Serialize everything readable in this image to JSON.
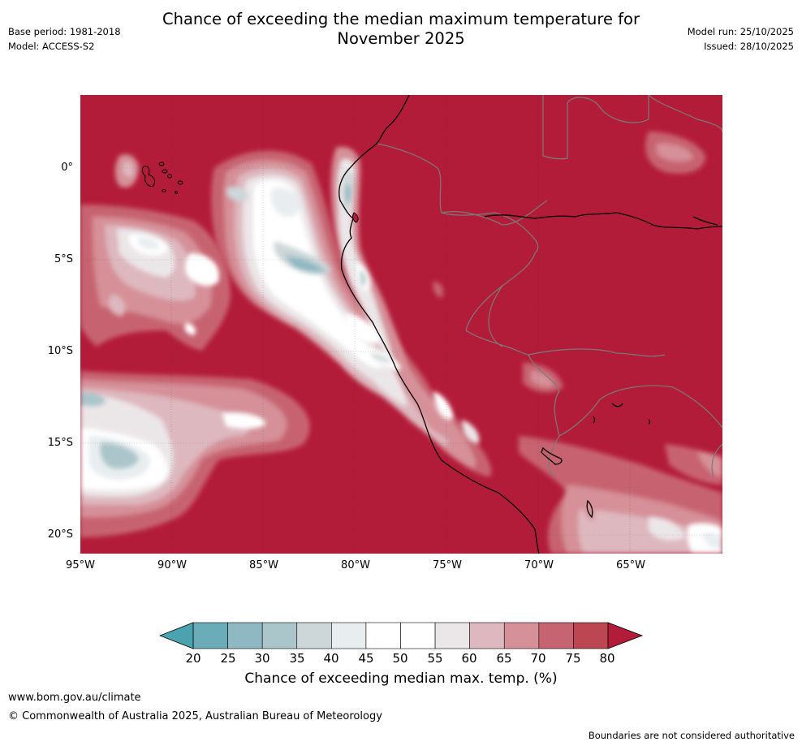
{
  "header": {
    "title_line1": "Chance of exceeding the median maximum temperature for",
    "title_line2": "November 2025",
    "base_period": "Base period: 1981-2018",
    "model": "Model: ACCESS-S2",
    "model_run": "Model run: 25/10/2025",
    "issued": "Issued: 28/10/2025"
  },
  "map": {
    "latitude_labels": [
      "0°",
      "5°S",
      "10°S",
      "15°S",
      "20°S"
    ],
    "longitude_labels": [
      "95°W",
      "90°W",
      "85°W",
      "80°W",
      "75°W",
      "70°W",
      "65°W"
    ],
    "colors": {
      "c20": "#5aa6b2",
      "c25": "#6aacb8",
      "c30": "#8fb8c2",
      "c35": "#aac6cb",
      "c40": "#cdd7d9",
      "c45": "#e8eef0",
      "c50": "#ffffff",
      "c55": "#ffffff",
      "c60": "#ebe6e8",
      "c65": "#deb8bf",
      "c70": "#d69098",
      "c75": "#c76471",
      "c80": "#bd4653",
      "c85": "#b31c39"
    }
  },
  "colorbar": {
    "ticks": [
      "20",
      "25",
      "30",
      "35",
      "40",
      "45",
      "50",
      "55",
      "60",
      "65",
      "70",
      "75",
      "80"
    ],
    "colors": [
      "#6aacb8",
      "#8fb8c2",
      "#aac6cb",
      "#cdd7d9",
      "#e8eef0",
      "#ffffff",
      "#ffffff",
      "#ebe6e8",
      "#deb8bf",
      "#d69098",
      "#c76471",
      "#bd4653"
    ],
    "below_color": "#4aa3af",
    "above_color": "#b31c39",
    "label": "Chance of exceeding median max. temp. (%)"
  },
  "footer": {
    "url": "www.bom.gov.au/climate",
    "copyright": "© Commonwealth of Australia 2025, Australian Bureau of Meteorology",
    "disclaimer": "Boundaries are not considered authoritative"
  }
}
